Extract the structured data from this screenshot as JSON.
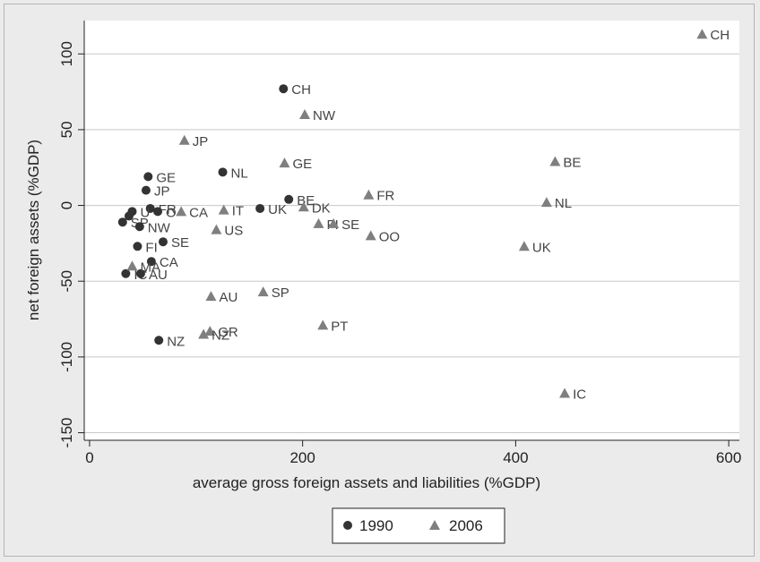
{
  "chart_data": {
    "type": "scatter",
    "title": "",
    "xlabel": "average gross foreign assets and liabilities (%GDP)",
    "ylabel": "net foreign assets (%GDP)",
    "xlim": [
      -5,
      610
    ],
    "ylim": [
      -155,
      122
    ],
    "x_ticks": [
      0,
      200,
      400,
      600
    ],
    "y_ticks": [
      -150,
      -100,
      -50,
      0,
      50,
      100
    ],
    "grid": "horizontal",
    "legend_position": "bottom",
    "series": [
      {
        "name": "1990",
        "marker": "circle",
        "color": "#333333",
        "points": [
          {
            "label": "CH",
            "x": 182,
            "y": 77
          },
          {
            "label": "NL",
            "x": 125,
            "y": 22
          },
          {
            "label": "GE",
            "x": 55,
            "y": 19
          },
          {
            "label": "JP",
            "x": 53,
            "y": 10
          },
          {
            "label": "BE",
            "x": 187,
            "y": 4
          },
          {
            "label": "UK",
            "x": 160,
            "y": -2
          },
          {
            "label": "FR",
            "x": 57,
            "y": -2
          },
          {
            "label": "O",
            "x": 64,
            "y": -4
          },
          {
            "label": "U",
            "x": 40,
            "y": -4
          },
          {
            "label": "",
            "x": 37,
            "y": -7
          },
          {
            "label": "SP",
            "x": 31,
            "y": -11
          },
          {
            "label": "NW",
            "x": 47,
            "y": -14
          },
          {
            "label": "FI",
            "x": 45,
            "y": -27
          },
          {
            "label": "SE",
            "x": 69,
            "y": -24
          },
          {
            "label": "CA",
            "x": 58,
            "y": -37
          },
          {
            "label": "IC",
            "x": 34,
            "y": -45
          },
          {
            "label": "AU",
            "x": 48,
            "y": -45
          },
          {
            "label": "NZ",
            "x": 65,
            "y": -89
          }
        ]
      },
      {
        "name": "2006",
        "marker": "triangle",
        "color": "#7f7f7f",
        "points": [
          {
            "label": "CH",
            "x": 575,
            "y": 113
          },
          {
            "label": "NW",
            "x": 202,
            "y": 60
          },
          {
            "label": "JP",
            "x": 89,
            "y": 43
          },
          {
            "label": "GE",
            "x": 183,
            "y": 28
          },
          {
            "label": "BE",
            "x": 437,
            "y": 29
          },
          {
            "label": "FR",
            "x": 262,
            "y": 7
          },
          {
            "label": "NL",
            "x": 429,
            "y": 2
          },
          {
            "label": "DK",
            "x": 201,
            "y": -1
          },
          {
            "label": "CA",
            "x": 86,
            "y": -4
          },
          {
            "label": "IT",
            "x": 126,
            "y": -3
          },
          {
            "label": "FI",
            "x": 215,
            "y": -12
          },
          {
            "label": "SE",
            "x": 229,
            "y": -12
          },
          {
            "label": "US",
            "x": 119,
            "y": -16
          },
          {
            "label": "OO",
            "x": 264,
            "y": -20
          },
          {
            "label": "UK",
            "x": 408,
            "y": -27
          },
          {
            "label": "MA",
            "x": 40,
            "y": -40
          },
          {
            "label": "AU",
            "x": 114,
            "y": -60
          },
          {
            "label": "SP",
            "x": 163,
            "y": -57
          },
          {
            "label": "PT",
            "x": 219,
            "y": -79
          },
          {
            "label": "GR",
            "x": 113,
            "y": -83
          },
          {
            "label": "NZ",
            "x": 107,
            "y": -85
          },
          {
            "label": "IC",
            "x": 446,
            "y": -124
          }
        ]
      }
    ]
  }
}
